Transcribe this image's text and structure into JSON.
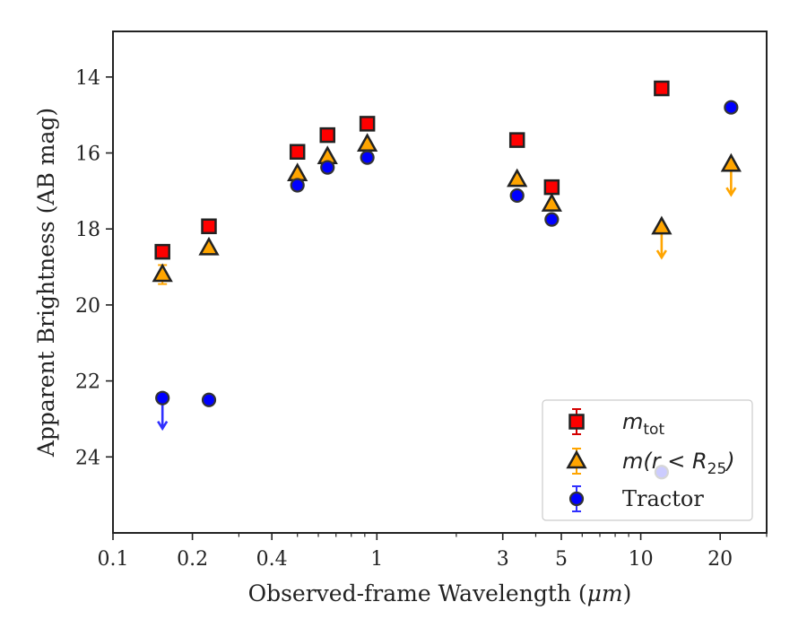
{
  "chart_data": {
    "type": "scatter",
    "xlabel_prefix": "Observed-frame Wavelength (",
    "xlabel_unit": "μm",
    "xlabel_suffix": ")",
    "ylabel": "Apparent Brightness (AB mag)",
    "xscale": "log",
    "xlim": [
      0.1,
      30
    ],
    "ylim": [
      26.0,
      12.8
    ],
    "y_inverted": true,
    "grid": false,
    "legend_position": "lower-right",
    "xticks": [
      {
        "value": 0.1,
        "label": "0.1"
      },
      {
        "value": 0.2,
        "label": "0.2"
      },
      {
        "value": 0.4,
        "label": "0.4"
      },
      {
        "value": 1,
        "label": "1"
      },
      {
        "value": 3,
        "label": "3"
      },
      {
        "value": 5,
        "label": "5"
      },
      {
        "value": 10,
        "label": "10"
      },
      {
        "value": 20,
        "label": "20"
      }
    ],
    "yticks": [
      {
        "value": 14,
        "label": "14"
      },
      {
        "value": 16,
        "label": "16"
      },
      {
        "value": 18,
        "label": "18"
      },
      {
        "value": 20,
        "label": "20"
      },
      {
        "value": 22,
        "label": "22"
      },
      {
        "value": 24,
        "label": "24"
      }
    ],
    "series": [
      {
        "key": "mtot",
        "name_main": "m",
        "name_sub": "tot",
        "marker": "square",
        "color": "#ff0000",
        "errcolor": "#d40000",
        "points": [
          {
            "x": 0.154,
            "y": 18.6
          },
          {
            "x": 0.231,
            "y": 17.93
          },
          {
            "x": 0.5,
            "y": 15.97
          },
          {
            "x": 0.65,
            "y": 15.53
          },
          {
            "x": 0.92,
            "y": 15.23
          },
          {
            "x": 3.4,
            "y": 15.66
          },
          {
            "x": 4.6,
            "y": 16.9
          },
          {
            "x": 12.0,
            "y": 14.3
          }
        ]
      },
      {
        "key": "mr25",
        "name_main": "m(r < R",
        "name_sub": "25",
        "name_end": ")",
        "marker": "triangle",
        "color": "#ffa500",
        "errcolor": "#ffa500",
        "points": [
          {
            "x": 0.154,
            "y": 19.2,
            "err": 0.25
          },
          {
            "x": 0.231,
            "y": 18.5
          },
          {
            "x": 0.5,
            "y": 16.55
          },
          {
            "x": 0.65,
            "y": 16.1
          },
          {
            "x": 0.92,
            "y": 15.77
          },
          {
            "x": 3.4,
            "y": 16.7
          },
          {
            "x": 4.6,
            "y": 17.35
          },
          {
            "x": 12.0,
            "y": 17.95,
            "upper_limit": true
          },
          {
            "x": 22.0,
            "y": 16.3,
            "upper_limit": true
          }
        ]
      },
      {
        "key": "tractor",
        "name_main": "Tractor",
        "marker": "circle",
        "color": "#0000ff",
        "errcolor": "#3030ff",
        "points": [
          {
            "x": 0.154,
            "y": 22.45,
            "upper_limit": true
          },
          {
            "x": 0.231,
            "y": 22.5
          },
          {
            "x": 0.5,
            "y": 16.85
          },
          {
            "x": 0.65,
            "y": 16.38
          },
          {
            "x": 0.92,
            "y": 16.12
          },
          {
            "x": 3.4,
            "y": 17.12
          },
          {
            "x": 4.6,
            "y": 17.75
          },
          {
            "x": 12.0,
            "y": 24.4
          },
          {
            "x": 22.0,
            "y": 14.8
          }
        ]
      }
    ]
  }
}
